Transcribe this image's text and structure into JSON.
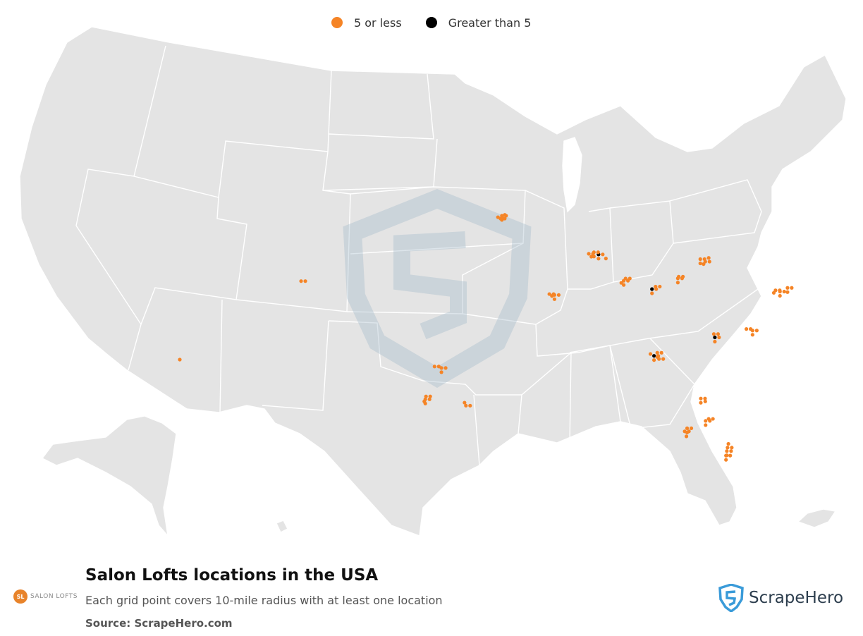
{
  "legend": {
    "items": [
      {
        "label": "5 or less",
        "color": "#f58426"
      },
      {
        "label": "Greater than 5",
        "color": "#000000"
      }
    ]
  },
  "title": "Salon Lofts locations in the USA",
  "subtitle": "Each grid point covers 10-mile radius with at least one location",
  "source": "Source: ScrapeHero.com",
  "brand": {
    "initials": "SL",
    "name": "SALON LOFTS"
  },
  "scrapehero": {
    "name": "ScrapeHero",
    "icon": "scrapehero-shield-icon"
  },
  "map": {
    "land_color": "#e4e4e4",
    "border_color": "#ffffff",
    "icon": "usa-map"
  },
  "locations": [
    {
      "lat": 44.98,
      "lon": -93.27,
      "count": 3
    },
    {
      "lat": 44.86,
      "lon": -93.5,
      "count": 2
    },
    {
      "lat": 45.05,
      "lon": -93.1,
      "count": 1
    },
    {
      "lat": 44.75,
      "lon": -93.35,
      "count": 2
    },
    {
      "lat": 41.88,
      "lon": -87.63,
      "count": 8
    },
    {
      "lat": 42.05,
      "lon": -87.9,
      "count": 3
    },
    {
      "lat": 41.93,
      "lon": -88.2,
      "count": 2
    },
    {
      "lat": 41.7,
      "lon": -88.05,
      "count": 1
    },
    {
      "lat": 41.55,
      "lon": -87.2,
      "count": 1
    },
    {
      "lat": 39.77,
      "lon": -86.16,
      "count": 3
    },
    {
      "lat": 39.95,
      "lon": -86.05,
      "count": 2
    },
    {
      "lat": 39.6,
      "lon": -86.3,
      "count": 1
    },
    {
      "lat": 39.1,
      "lon": -84.51,
      "count": 7
    },
    {
      "lat": 39.3,
      "lon": -84.3,
      "count": 2
    },
    {
      "lat": 39.96,
      "lon": -83.0,
      "count": 3
    },
    {
      "lat": 40.1,
      "lon": -82.95,
      "count": 2
    },
    {
      "lat": 41.5,
      "lon": -81.69,
      "count": 3
    },
    {
      "lat": 41.3,
      "lon": -81.4,
      "count": 2
    },
    {
      "lat": 41.1,
      "lon": -81.5,
      "count": 1
    },
    {
      "lat": 41.6,
      "lon": -81.2,
      "count": 1
    },
    {
      "lat": 38.63,
      "lon": -90.2,
      "count": 3
    },
    {
      "lat": 38.7,
      "lon": -90.5,
      "count": 2
    },
    {
      "lat": 38.55,
      "lon": -90.35,
      "count": 1
    },
    {
      "lat": 39.74,
      "lon": -104.99,
      "count": 2
    },
    {
      "lat": 33.45,
      "lon": -112.07,
      "count": 1
    },
    {
      "lat": 32.78,
      "lon": -96.8,
      "count": 4
    },
    {
      "lat": 32.9,
      "lon": -97.2,
      "count": 2
    },
    {
      "lat": 30.27,
      "lon": -97.74,
      "count": 3
    },
    {
      "lat": 30.5,
      "lon": -97.7,
      "count": 2
    },
    {
      "lat": 30.1,
      "lon": -97.8,
      "count": 1
    },
    {
      "lat": 29.76,
      "lon": -95.37,
      "count": 2
    },
    {
      "lat": 30.0,
      "lon": -95.45,
      "count": 1
    },
    {
      "lat": 35.23,
      "lon": -80.84,
      "count": 6
    },
    {
      "lat": 35.5,
      "lon": -80.9,
      "count": 2
    },
    {
      "lat": 35.78,
      "lon": -78.64,
      "count": 3
    },
    {
      "lat": 35.9,
      "lon": -79.0,
      "count": 2
    },
    {
      "lat": 33.75,
      "lon": -84.39,
      "count": 9
    },
    {
      "lat": 34.0,
      "lon": -84.2,
      "count": 3
    },
    {
      "lat": 33.5,
      "lon": -84.1,
      "count": 2
    },
    {
      "lat": 33.9,
      "lon": -84.6,
      "count": 1
    },
    {
      "lat": 38.9,
      "lon": -77.04,
      "count": 4
    },
    {
      "lat": 39.2,
      "lon": -76.6,
      "count": 3
    },
    {
      "lat": 39.0,
      "lon": -77.3,
      "count": 2
    },
    {
      "lat": 38.8,
      "lon": -77.4,
      "count": 1
    },
    {
      "lat": 30.33,
      "lon": -81.66,
      "count": 3
    },
    {
      "lat": 30.1,
      "lon": -81.4,
      "count": 1
    },
    {
      "lat": 28.54,
      "lon": -81.38,
      "count": 4
    },
    {
      "lat": 28.7,
      "lon": -81.2,
      "count": 2
    },
    {
      "lat": 27.95,
      "lon": -82.46,
      "count": 3
    },
    {
      "lat": 27.7,
      "lon": -82.6,
      "count": 2
    },
    {
      "lat": 27.3,
      "lon": -82.5,
      "count": 1
    },
    {
      "lat": 26.12,
      "lon": -80.14,
      "count": 4
    },
    {
      "lat": 26.4,
      "lon": -80.1,
      "count": 2
    },
    {
      "lat": 25.76,
      "lon": -80.19,
      "count": 3
    },
    {
      "lat": 26.7,
      "lon": -80.05,
      "count": 1
    }
  ]
}
